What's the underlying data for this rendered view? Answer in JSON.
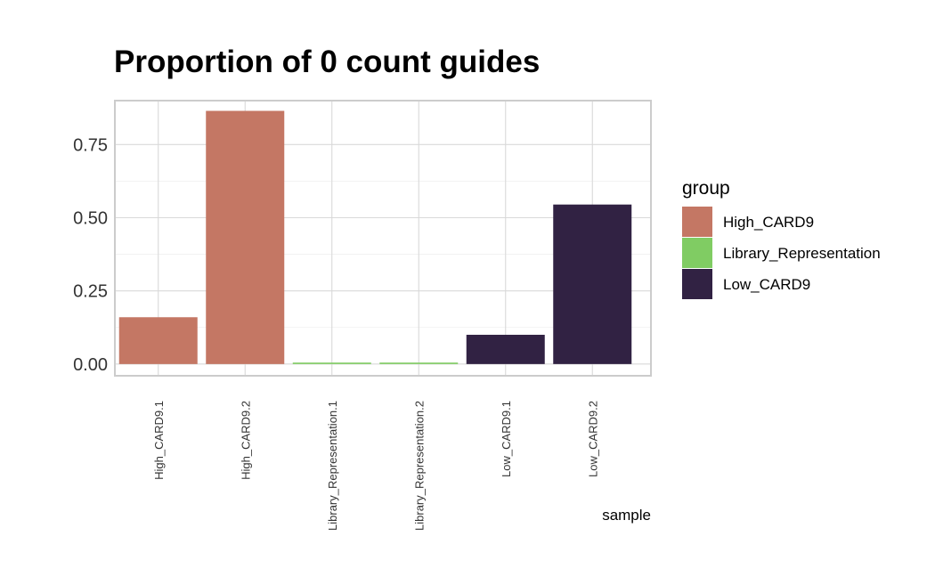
{
  "chart_data": {
    "type": "bar",
    "title": "Proportion of 0 count guides",
    "xlabel": "sample",
    "ylabel": "",
    "categories": [
      "High_CARD9.1",
      "High_CARD9.2",
      "Library_Representation.1",
      "Library_Representation.2",
      "Low_CARD9.1",
      "Low_CARD9.2"
    ],
    "values": [
      0.16,
      0.865,
      0.005,
      0.005,
      0.1,
      0.545
    ],
    "groups": [
      "High_CARD9",
      "High_CARD9",
      "Library_Representation",
      "Library_Representation",
      "Low_CARD9",
      "Low_CARD9"
    ],
    "ylim": [
      -0.04,
      0.9
    ],
    "yticks": [
      0.0,
      0.25,
      0.5,
      0.75
    ],
    "ytick_labels": [
      "0.00",
      "0.25",
      "0.50",
      "0.75"
    ],
    "grid": true,
    "legend": {
      "title": "group",
      "placement": "right",
      "items": [
        {
          "label": "High_CARD9",
          "color": "#c47764"
        },
        {
          "label": "Library_Representation",
          "color": "#80cc63"
        },
        {
          "label": "Low_CARD9",
          "color": "#312243"
        }
      ]
    }
  }
}
